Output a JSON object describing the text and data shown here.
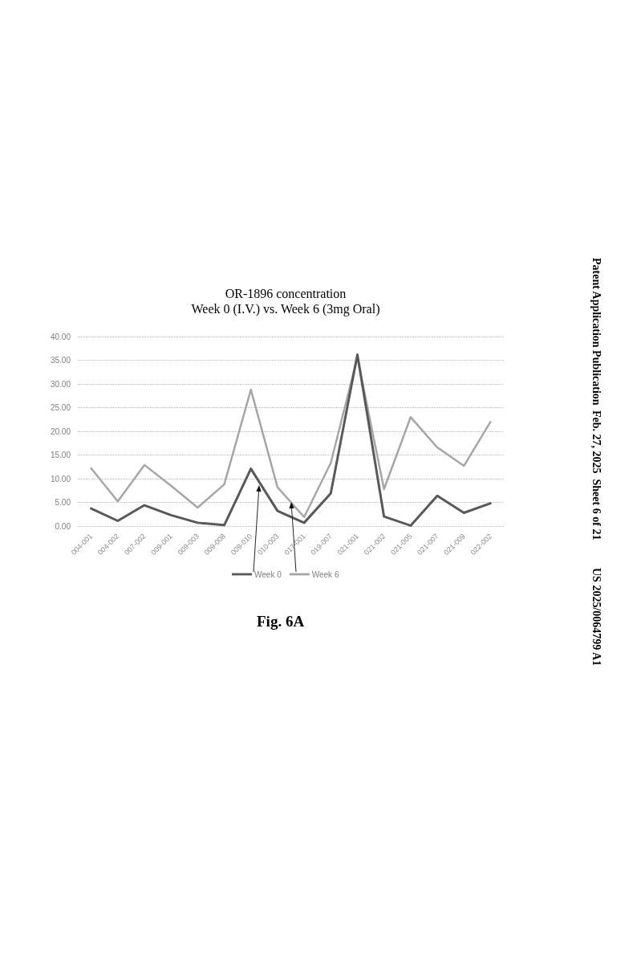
{
  "chart_data": {
    "type": "line",
    "title": "OR-1896 concentration",
    "subtitle": "Week 0 (I.V.) vs. Week 6 (3mg Oral)",
    "categories": [
      "004-001",
      "004-002",
      "007-002",
      "009-001",
      "009-003",
      "009-008",
      "009-010",
      "010-003",
      "017-001",
      "019-007",
      "021-001",
      "021-002",
      "021-005",
      "021-007",
      "021-009",
      "022-002"
    ],
    "series": [
      {
        "name": "Week 0",
        "color": "#595959",
        "values": [
          3.7,
          1.1,
          4.4,
          2.3,
          0.7,
          0.2,
          12.1,
          3.2,
          0.7,
          6.9,
          36.2,
          2.0,
          0.1,
          6.4,
          2.8,
          4.8
        ]
      },
      {
        "name": "Week 6",
        "color": "#a6a6a6",
        "values": [
          12.2,
          5.2,
          12.9,
          8.5,
          3.9,
          8.8,
          28.8,
          8.2,
          1.9,
          13.3,
          35.6,
          7.8,
          23.0,
          16.6,
          12.7,
          22.0
        ]
      }
    ],
    "ylim": [
      0,
      40
    ],
    "yticks": [
      {
        "value": 0,
        "label": "0.00"
      },
      {
        "value": 5,
        "label": "5.00"
      },
      {
        "value": 10,
        "label": "10.00"
      },
      {
        "value": 15,
        "label": "15.00"
      },
      {
        "value": 20,
        "label": "20.00"
      },
      {
        "value": 25,
        "label": "25.00"
      },
      {
        "value": 30,
        "label": "30.00"
      },
      {
        "value": 35,
        "label": "35.00"
      },
      {
        "value": 40,
        "label": "40.00"
      }
    ],
    "grid": "y",
    "legend": "bottom",
    "marker": "none",
    "line_style": "solid",
    "annotations": [
      "Fig. 6A",
      "Patent Application Publication",
      "Feb. 27, 2025  Sheet 6 of 21",
      "US 2025/0064799 A1"
    ]
  }
}
